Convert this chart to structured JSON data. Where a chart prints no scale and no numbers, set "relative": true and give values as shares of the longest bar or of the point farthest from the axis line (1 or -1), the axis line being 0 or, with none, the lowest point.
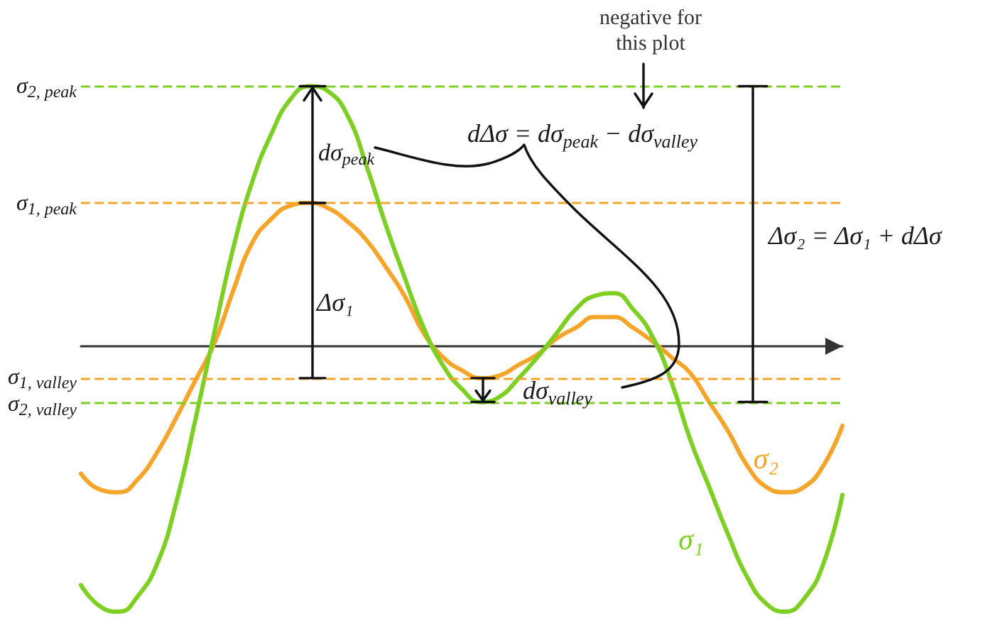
{
  "chart_data": {
    "type": "line",
    "relative": true,
    "marker": "none",
    "line_style": "solid",
    "categories": [
      null,
      null,
      null,
      null,
      null,
      null,
      null,
      null,
      null,
      null,
      null,
      null,
      null,
      null,
      null,
      null,
      null,
      null,
      null,
      null,
      null,
      null,
      null,
      null,
      null,
      null,
      null,
      null,
      null,
      null,
      null,
      null,
      null,
      null,
      null,
      null,
      null,
      null,
      null,
      null,
      null
    ],
    "series": [
      {
        "name": "σ₂",
        "color": "#f5a52a",
        "values": [
          -0.48,
          -0.54,
          -0.55,
          -0.5,
          -0.4,
          -0.27,
          -0.13,
          0.01,
          0.21,
          0.39,
          0.48,
          0.53,
          0.54,
          0.52,
          0.47,
          0.4,
          0.3,
          0.19,
          0.05,
          -0.04,
          -0.09,
          -0.12,
          -0.11,
          -0.07,
          -0.03,
          0.03,
          0.07,
          0.11,
          0.11,
          0.07,
          0.02,
          -0.04,
          -0.1,
          -0.21,
          -0.32,
          -0.45,
          -0.53,
          -0.55,
          -0.53,
          -0.45,
          -0.3
        ]
      },
      {
        "name": "σ₁",
        "color": "#7dcf23",
        "values": [
          -0.9,
          -0.98,
          -1,
          -0.94,
          -0.82,
          -0.59,
          -0.28,
          0.05,
          0.37,
          0.62,
          0.8,
          0.93,
          0.98,
          0.96,
          0.87,
          0.68,
          0.46,
          0.26,
          0.07,
          -0.07,
          -0.16,
          -0.21,
          -0.19,
          -0.12,
          -0.04,
          0.05,
          0.14,
          0.19,
          0.2,
          0.14,
          0.04,
          -0.13,
          -0.35,
          -0.53,
          -0.71,
          -0.87,
          -0.97,
          -1,
          -0.95,
          -0.82,
          -0.56
        ]
      }
    ],
    "ref_lines": [
      {
        "axis": "y",
        "value": 0.98,
        "label": "σ$_{2, peak}$",
        "color": "#7dcf23",
        "line_style": "dashed"
      },
      {
        "axis": "y",
        "value": 0.54,
        "label": "σ$_{1, peak}$",
        "color": "#f5a52a",
        "line_style": "dashed"
      },
      {
        "axis": "y",
        "value": -0.12,
        "label": "σ$_{1, valley}$",
        "color": "#f5a52a",
        "line_style": "dashed"
      },
      {
        "axis": "y",
        "value": -0.21,
        "label": "σ$_{2, valley}$",
        "color": "#7dcf23",
        "line_style": "dashed"
      }
    ],
    "annotations": [
      "negative for this plot",
      "dΔσ = dσ$_{peak}$ − dσ$_{valley}$",
      "Δσ₂ = Δσ₁ + dΔσ",
      "dσ$_{peak}$",
      "Δσ₁",
      "dσ$_{valley}$"
    ]
  }
}
